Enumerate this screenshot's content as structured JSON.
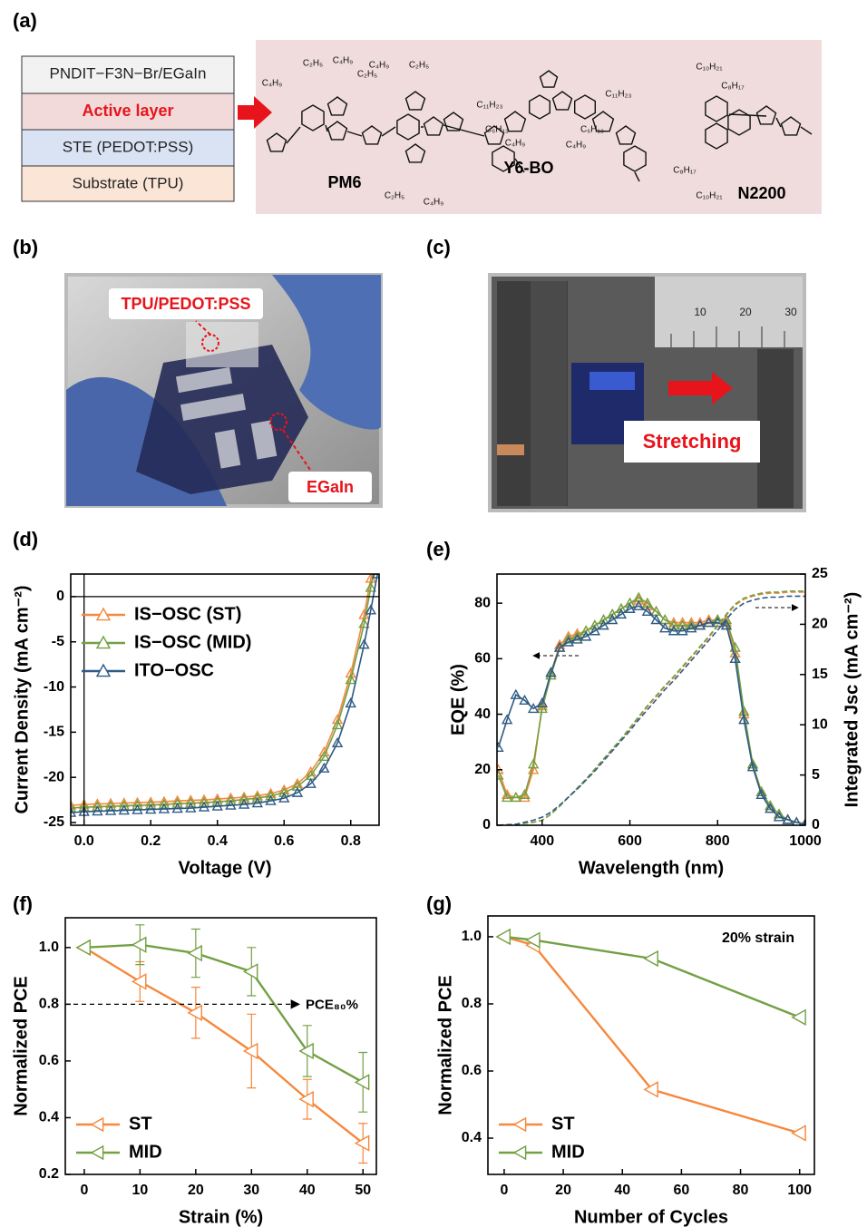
{
  "panels": [
    "(a)",
    "(b)",
    "(c)",
    "(d)",
    "(e)",
    "(f)",
    "(g)"
  ],
  "panel_a": {
    "layers": [
      "PNDIT−F3N−Br/EGaIn",
      "Active layer",
      "STE (PEDOT:PSS)",
      "Substrate (TPU)"
    ],
    "molecules": [
      "PM6",
      "Y6-BO",
      "N2200"
    ],
    "substituents": [
      "C₂H₅",
      "C₄H₉",
      "C₄H₉",
      "C₂H₅",
      "C₄H₉",
      "C₂H₅",
      "C₂H₅",
      "C₄H₉",
      "C₁₁H₂₃",
      "C₁₁H₂₃",
      "C₆H₁₃",
      "C₄H₉",
      "C₆H₁₃",
      "C₄H₉",
      "C₁₀H₂₁",
      "C₈H₁₇",
      "C₈H₁₇",
      "C₁₀H₂₁"
    ]
  },
  "panel_b": {
    "labels": [
      "TPU/PEDOT:PSS",
      "EGaIn"
    ]
  },
  "panel_c": {
    "label": "Stretching",
    "ruler": [
      "10",
      "20",
      "30"
    ]
  },
  "chart_data": [
    {
      "type": "line",
      "xlabel": "Voltage (V)",
      "ylabel": "Current Density (mA cm⁻²)",
      "xlim": [
        -0.04,
        0.885
      ],
      "ylim": [
        -25.3,
        2.5
      ],
      "xticks": [
        {
          "value": 0,
          "label": "0.0"
        },
        0.2,
        0.4,
        0.6,
        0.8
      ],
      "yticks": [
        0,
        -5,
        -10,
        -15,
        -20,
        -25
      ],
      "zero_lines": true,
      "legend": "upper left",
      "x": [
        -0.04,
        0,
        0.04,
        0.08,
        0.12,
        0.16,
        0.2,
        0.24,
        0.28,
        0.32,
        0.36,
        0.4,
        0.44,
        0.48,
        0.52,
        0.56,
        0.6,
        0.64,
        0.68,
        0.72,
        0.76,
        0.8,
        0.84,
        0.86,
        0.88
      ],
      "series": [
        {
          "name": "IS−OSC (ST)",
          "color": "#f5883c",
          "marker": "triangle-up",
          "values": [
            -23.1,
            -23.0,
            -22.95,
            -22.9,
            -22.85,
            -22.8,
            -22.75,
            -22.7,
            -22.6,
            -22.55,
            -22.5,
            -22.4,
            -22.3,
            -22.2,
            -22.05,
            -21.8,
            -21.4,
            -20.7,
            -19.4,
            -17.2,
            -13.6,
            -8.5,
            -2.0,
            2.0,
            5.5
          ]
        },
        {
          "name": "IS−OSC (MID)",
          "color": "#72a043",
          "marker": "triangle-up",
          "values": [
            -23.4,
            -23.3,
            -23.25,
            -23.2,
            -23.15,
            -23.1,
            -23.05,
            -23.0,
            -22.9,
            -22.85,
            -22.8,
            -22.7,
            -22.6,
            -22.45,
            -22.3,
            -22.05,
            -21.7,
            -21.0,
            -19.8,
            -17.7,
            -14.2,
            -9.2,
            -3.0,
            1.0,
            5.0
          ]
        },
        {
          "name": "ITO−OSC",
          "color": "#2e5a84",
          "marker": "triangle-up",
          "values": [
            -23.9,
            -23.8,
            -23.75,
            -23.7,
            -23.65,
            -23.6,
            -23.55,
            -23.5,
            -23.45,
            -23.4,
            -23.3,
            -23.2,
            -23.1,
            -23.0,
            -22.85,
            -22.6,
            -22.3,
            -21.7,
            -20.7,
            -19.0,
            -16.2,
            -11.8,
            -5.3,
            -1.5,
            2.5
          ]
        }
      ]
    },
    {
      "type": "line",
      "xlabel": "Wavelength (nm)",
      "ylabel": "EQE (%)",
      "y2label": "Integrated Jsc (mA cm⁻²)",
      "xlim": [
        297,
        1000
      ],
      "ylim": [
        0,
        90.5
      ],
      "y2lim": [
        0,
        25
      ],
      "xticks": [
        400,
        600,
        800,
        1000
      ],
      "yticks": [
        0,
        20,
        40,
        60,
        80
      ],
      "y2ticks": [
        0,
        5,
        10,
        15,
        20,
        25
      ],
      "x": [
        300,
        320,
        340,
        360,
        380,
        400,
        420,
        440,
        460,
        480,
        500,
        520,
        540,
        560,
        580,
        600,
        620,
        640,
        660,
        680,
        700,
        720,
        740,
        760,
        780,
        800,
        820,
        840,
        860,
        880,
        900,
        920,
        940,
        960,
        980,
        1000
      ],
      "series": [
        {
          "color": "#f5883c",
          "marker": "triangle-up",
          "values": [
            20,
            11,
            10,
            10,
            20,
            43,
            55,
            65,
            68,
            69,
            70,
            72,
            74,
            76,
            78,
            80,
            81,
            79,
            77,
            74,
            73,
            73,
            73,
            73,
            74,
            74,
            73,
            62,
            40,
            22,
            12,
            7,
            4,
            2,
            1,
            0.5
          ]
        },
        {
          "color": "#72a043",
          "marker": "triangle-up",
          "values": [
            18,
            10,
            10,
            11,
            22,
            42,
            54,
            64,
            67,
            68,
            70,
            72,
            74,
            76,
            78,
            80,
            82,
            80,
            77,
            74,
            72,
            72,
            72,
            72,
            73,
            74,
            74,
            64,
            41,
            22,
            12,
            7,
            4,
            2,
            1,
            0.5
          ]
        },
        {
          "color": "#2e5a84",
          "marker": "triangle-up",
          "values": [
            28,
            38,
            47,
            45,
            42,
            44,
            55,
            64,
            66,
            67,
            68,
            70,
            72,
            74,
            76,
            78,
            79,
            77,
            74,
            71,
            70,
            70,
            71,
            72,
            73,
            73,
            72,
            60,
            38,
            21,
            11,
            6,
            3,
            2,
            1,
            0.5
          ]
        },
        {
          "color": "#f5883c",
          "dash": true,
          "axis": "y2",
          "values": [
            0,
            0.05,
            0.1,
            0.2,
            0.3,
            0.5,
            1.1,
            1.9,
            2.8,
            3.6,
            4.5,
            5.5,
            6.5,
            7.5,
            8.5,
            9.6,
            10.7,
            11.8,
            12.8,
            13.8,
            14.7,
            15.7,
            16.7,
            17.7,
            18.7,
            19.8,
            20.9,
            21.9,
            22.5,
            22.8,
            23.0,
            23.1,
            23.1,
            23.2,
            23.2,
            23.2
          ]
        },
        {
          "color": "#72a043",
          "dash": true,
          "axis": "y2",
          "values": [
            0,
            0.05,
            0.1,
            0.2,
            0.3,
            0.5,
            1.1,
            1.9,
            2.8,
            3.7,
            4.6,
            5.6,
            6.6,
            7.6,
            8.6,
            9.7,
            10.8,
            11.9,
            12.9,
            13.9,
            14.8,
            15.8,
            16.8,
            17.8,
            18.8,
            19.9,
            21.0,
            22.0,
            22.6,
            22.9,
            23.1,
            23.2,
            23.2,
            23.3,
            23.3,
            23.3
          ]
        },
        {
          "color": "#2e5a84",
          "dash": true,
          "axis": "y2",
          "values": [
            0,
            0.05,
            0.1,
            0.3,
            0.5,
            0.8,
            1.3,
            2.0,
            2.8,
            3.6,
            4.5,
            5.4,
            6.4,
            7.4,
            8.4,
            9.4,
            10.5,
            11.5,
            12.5,
            13.5,
            14.4,
            15.4,
            16.4,
            17.4,
            18.4,
            19.4,
            20.5,
            21.5,
            22.1,
            22.4,
            22.6,
            22.7,
            22.7,
            22.8,
            22.8,
            22.8
          ]
        }
      ]
    },
    {
      "type": "line",
      "xlabel": "Strain (%)",
      "ylabel": "Normalized PCE",
      "xlim": [
        -3.4,
        52.4
      ],
      "ylim": [
        0.2,
        1.105
      ],
      "xticks": [
        0,
        10,
        20,
        30,
        40,
        50
      ],
      "yticks": [
        0.2,
        0.4,
        0.6,
        0.8,
        {
          "value": 1,
          "label": "1.0"
        }
      ],
      "legend": "lower left",
      "threshold": 0.8,
      "annotation": "PCE₈₀%",
      "x": [
        0,
        10,
        20,
        30,
        40,
        50
      ],
      "series": [
        {
          "name": "ST",
          "color": "#f5883c",
          "marker": "triangle-left",
          "values": [
            1.0,
            0.88,
            0.77,
            0.635,
            0.465,
            0.31
          ],
          "errors": [
            0,
            0.07,
            0.09,
            0.13,
            0.07,
            0.07
          ]
        },
        {
          "name": "MID",
          "color": "#72a043",
          "marker": "triangle-left",
          "values": [
            1.0,
            1.01,
            0.98,
            0.915,
            0.635,
            0.525
          ],
          "errors": [
            0,
            0.07,
            0.085,
            0.085,
            0.09,
            0.105
          ]
        }
      ]
    },
    {
      "type": "line",
      "xlabel": "Number of Cycles",
      "ylabel": "Normalized PCE",
      "xlim": [
        -5.5,
        105
      ],
      "ylim": [
        0.292,
        1.062
      ],
      "xticks": [
        0,
        20,
        40,
        60,
        80,
        100
      ],
      "yticks": [
        0.4,
        0.6,
        0.8,
        {
          "value": 1,
          "label": "1.0"
        }
      ],
      "legend": "lower left",
      "annotation": "20% strain",
      "x": [
        0,
        10,
        50,
        100
      ],
      "series": [
        {
          "name": "ST",
          "color": "#f5883c",
          "marker": "triangle-left",
          "values": [
            1.0,
            0.975,
            0.545,
            0.415
          ]
        },
        {
          "name": "MID",
          "color": "#72a043",
          "marker": "triangle-left",
          "values": [
            1.0,
            0.99,
            0.935,
            0.76
          ]
        }
      ]
    }
  ]
}
